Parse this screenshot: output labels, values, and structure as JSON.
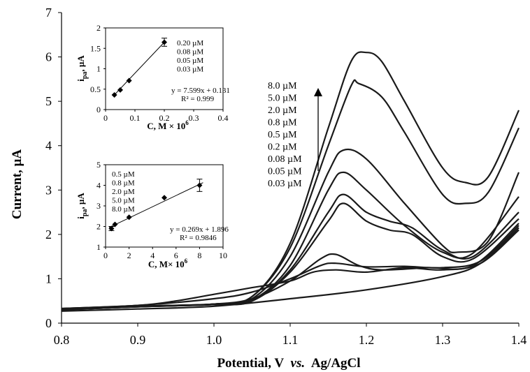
{
  "chart_data": {
    "type": "line",
    "xlabel_main": "Potential, V",
    "xlabel_vs": "vs.",
    "xlabel_ref": "Ag/AgCl",
    "ylabel": "Current, µA",
    "xlim": [
      0.8,
      1.4
    ],
    "ylim": [
      0,
      7
    ],
    "x_ticks": [
      "0.8",
      "0.9",
      "1.0",
      "1.1",
      "1.2",
      "1.3",
      "1.4"
    ],
    "y_ticks": [
      "0",
      "1",
      "2",
      "3",
      "4",
      "5",
      "6",
      "7"
    ],
    "grid": false,
    "legend_labels": [
      "8.0 µM",
      "5.0 µM",
      "2.0 µM",
      "0.8 µM",
      "0.5 µM",
      "0.2 µM",
      "0.08 µM",
      "0.05 µM",
      "0.03 µM"
    ],
    "legend_placement": "top-center, with upward arrow",
    "series": [
      {
        "points": [
          [
            0.8,
            0.3
          ],
          [
            0.9,
            0.38
          ],
          [
            1.0,
            0.43
          ],
          [
            1.05,
            0.6
          ],
          [
            1.1,
            1.8
          ],
          [
            1.15,
            4.4
          ],
          [
            1.18,
            5.9
          ],
          [
            1.2,
            6.1
          ],
          [
            1.22,
            5.9
          ],
          [
            1.25,
            5.0
          ],
          [
            1.3,
            3.5
          ],
          [
            1.33,
            3.17
          ],
          [
            1.36,
            3.3
          ],
          [
            1.4,
            4.8
          ]
        ]
      },
      {
        "points": [
          [
            0.8,
            0.3
          ],
          [
            0.9,
            0.38
          ],
          [
            1.0,
            0.43
          ],
          [
            1.05,
            0.6
          ],
          [
            1.1,
            1.7
          ],
          [
            1.15,
            4.0
          ],
          [
            1.18,
            5.35
          ],
          [
            1.19,
            5.4
          ],
          [
            1.22,
            5.1
          ],
          [
            1.25,
            4.3
          ],
          [
            1.3,
            2.9
          ],
          [
            1.33,
            2.7
          ],
          [
            1.36,
            2.95
          ],
          [
            1.4,
            4.4
          ]
        ]
      },
      {
        "points": [
          [
            0.8,
            0.3
          ],
          [
            0.9,
            0.38
          ],
          [
            1.0,
            0.43
          ],
          [
            1.05,
            0.55
          ],
          [
            1.1,
            1.5
          ],
          [
            1.15,
            3.4
          ],
          [
            1.17,
            3.9
          ],
          [
            1.2,
            3.7
          ],
          [
            1.25,
            2.7
          ],
          [
            1.3,
            1.75
          ],
          [
            1.32,
            1.6
          ],
          [
            1.36,
            1.85
          ],
          [
            1.4,
            3.4
          ]
        ]
      },
      {
        "points": [
          [
            0.8,
            0.3
          ],
          [
            0.9,
            0.37
          ],
          [
            1.0,
            0.42
          ],
          [
            1.05,
            0.52
          ],
          [
            1.1,
            1.3
          ],
          [
            1.15,
            3.0
          ],
          [
            1.17,
            3.4
          ],
          [
            1.2,
            3.0
          ],
          [
            1.25,
            2.2
          ],
          [
            1.3,
            1.6
          ],
          [
            1.34,
            1.58
          ],
          [
            1.4,
            2.85
          ]
        ]
      },
      {
        "points": [
          [
            0.8,
            0.3
          ],
          [
            0.9,
            0.37
          ],
          [
            1.0,
            0.42
          ],
          [
            1.05,
            0.5
          ],
          [
            1.1,
            1.2
          ],
          [
            1.15,
            2.5
          ],
          [
            1.17,
            2.9
          ],
          [
            1.2,
            2.5
          ],
          [
            1.23,
            2.3
          ],
          [
            1.26,
            2.15
          ],
          [
            1.3,
            1.65
          ],
          [
            1.34,
            1.5
          ],
          [
            1.4,
            2.5
          ]
        ]
      },
      {
        "points": [
          [
            0.8,
            0.3
          ],
          [
            0.9,
            0.37
          ],
          [
            1.0,
            0.42
          ],
          [
            1.05,
            0.5
          ],
          [
            1.1,
            1.15
          ],
          [
            1.15,
            2.3
          ],
          [
            1.17,
            2.7
          ],
          [
            1.2,
            2.3
          ],
          [
            1.23,
            2.1
          ],
          [
            1.26,
            2.0
          ],
          [
            1.3,
            1.5
          ],
          [
            1.34,
            1.45
          ],
          [
            1.4,
            2.35
          ]
        ]
      },
      {
        "points": [
          [
            0.8,
            0.32
          ],
          [
            0.9,
            0.38
          ],
          [
            1.0,
            0.43
          ],
          [
            1.05,
            0.55
          ],
          [
            1.1,
            0.95
          ],
          [
            1.14,
            1.45
          ],
          [
            1.16,
            1.55
          ],
          [
            1.19,
            1.3
          ],
          [
            1.22,
            1.2
          ],
          [
            1.28,
            1.25
          ],
          [
            1.34,
            1.3
          ],
          [
            1.4,
            2.25
          ]
        ]
      },
      {
        "points": [
          [
            0.8,
            0.33
          ],
          [
            0.9,
            0.4
          ],
          [
            1.0,
            0.55
          ],
          [
            1.05,
            0.7
          ],
          [
            1.1,
            1.0
          ],
          [
            1.14,
            1.3
          ],
          [
            1.16,
            1.35
          ],
          [
            1.2,
            1.27
          ],
          [
            1.25,
            1.28
          ],
          [
            1.3,
            1.25
          ],
          [
            1.35,
            1.4
          ],
          [
            1.4,
            2.2
          ]
        ]
      },
      {
        "points": [
          [
            0.8,
            0.33
          ],
          [
            0.9,
            0.4
          ],
          [
            0.95,
            0.5
          ],
          [
            1.0,
            0.65
          ],
          [
            1.05,
            0.8
          ],
          [
            1.1,
            0.95
          ],
          [
            1.13,
            1.15
          ],
          [
            1.16,
            1.2
          ],
          [
            1.2,
            1.15
          ],
          [
            1.25,
            1.25
          ],
          [
            1.3,
            1.2
          ],
          [
            1.35,
            1.35
          ],
          [
            1.4,
            2.1
          ]
        ]
      },
      {
        "points": [
          [
            0.8,
            0.27
          ],
          [
            0.9,
            0.32
          ],
          [
            1.0,
            0.38
          ],
          [
            1.1,
            0.55
          ],
          [
            1.2,
            0.75
          ],
          [
            1.3,
            1.05
          ],
          [
            1.35,
            1.35
          ],
          [
            1.4,
            2.15
          ]
        ]
      }
    ],
    "insets": [
      {
        "ylabel": "i",
        "ylabel_sub": "pa",
        "ylabel_unit": ", µA",
        "xlabel": "C, M × 10",
        "xlabel_exp": "6",
        "xlim": [
          0,
          0.4
        ],
        "ylim": [
          0,
          2
        ],
        "x_ticks": [
          "0",
          "0.1",
          "0.2",
          "0.3",
          "0.4"
        ],
        "y_ticks": [
          "0",
          "0.5",
          "1",
          "1.5",
          "2"
        ],
        "points": [
          [
            0.03,
            0.36
          ],
          [
            0.05,
            0.48
          ],
          [
            0.08,
            0.71
          ],
          [
            0.2,
            1.65
          ]
        ],
        "error_bars": [
          [
            0.2,
            0.1
          ]
        ],
        "fit_line": [
          [
            0.03,
            0.36
          ],
          [
            0.2,
            1.65
          ]
        ],
        "labels": [
          "0.20 µM",
          "0.08 µM",
          "0.05 µM",
          "0.03 µM"
        ],
        "equation": "y = 7.599x + 0.131",
        "r2": "R² = 0.999"
      },
      {
        "ylabel": "i",
        "ylabel_sub": "pa",
        "ylabel_unit": ", µA",
        "xlabel": "C, M× 10",
        "xlabel_exp": "6",
        "xlim": [
          0,
          10
        ],
        "ylim": [
          1,
          5
        ],
        "x_ticks": [
          "0",
          "2",
          "4",
          "6",
          "8",
          "10"
        ],
        "y_ticks": [
          "1",
          "2",
          "3",
          "4",
          "5"
        ],
        "points": [
          [
            0.5,
            1.9
          ],
          [
            0.8,
            2.1
          ],
          [
            2.0,
            2.45
          ],
          [
            5.0,
            3.4
          ],
          [
            8.0,
            4.0
          ]
        ],
        "error_bars": [
          [
            0.5,
            0.1
          ],
          [
            8.0,
            0.3
          ]
        ],
        "fit_line": [
          [
            0.3,
            1.95
          ],
          [
            8.3,
            4.13
          ]
        ],
        "labels": [
          "0.5 µM",
          "0.8 µM",
          "2.0 µM",
          "5.0 µM",
          "8.0 µM"
        ],
        "equation": "y = 0.269x + 1.896",
        "r2": "R² = 0.9846"
      }
    ]
  }
}
